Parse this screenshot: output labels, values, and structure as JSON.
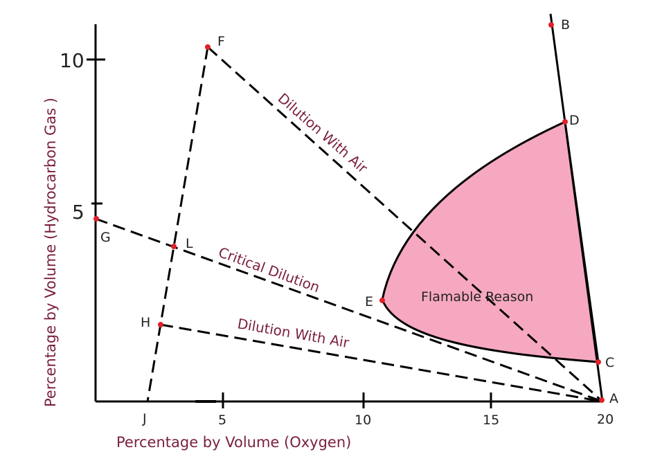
{
  "axes": {
    "x_title": "Percentage by Volume  (Oxygen)",
    "y_title": "Percentage by Volume   (Hydrocarbon Gas )",
    "x_ticks": [
      "5",
      "10",
      "15",
      "20"
    ],
    "y_ticks": [
      "10",
      "5"
    ]
  },
  "points": {
    "A": "A",
    "B": "B",
    "C": "C",
    "D": "D",
    "E": "E",
    "F": "F",
    "G": "G",
    "H": "H",
    "J": "J",
    "L": "L"
  },
  "annotations": {
    "dilution_upper": "Dilution With Air",
    "critical": "Critical Dilution",
    "dilution_lower": "Dilution With Air"
  },
  "region": {
    "label": "Flamable Reason",
    "fill_color": "#f6a8c0"
  },
  "colors": {
    "text_accent": "#7a1f3d",
    "point_marker": "#e0202a",
    "line": "#000000"
  }
}
